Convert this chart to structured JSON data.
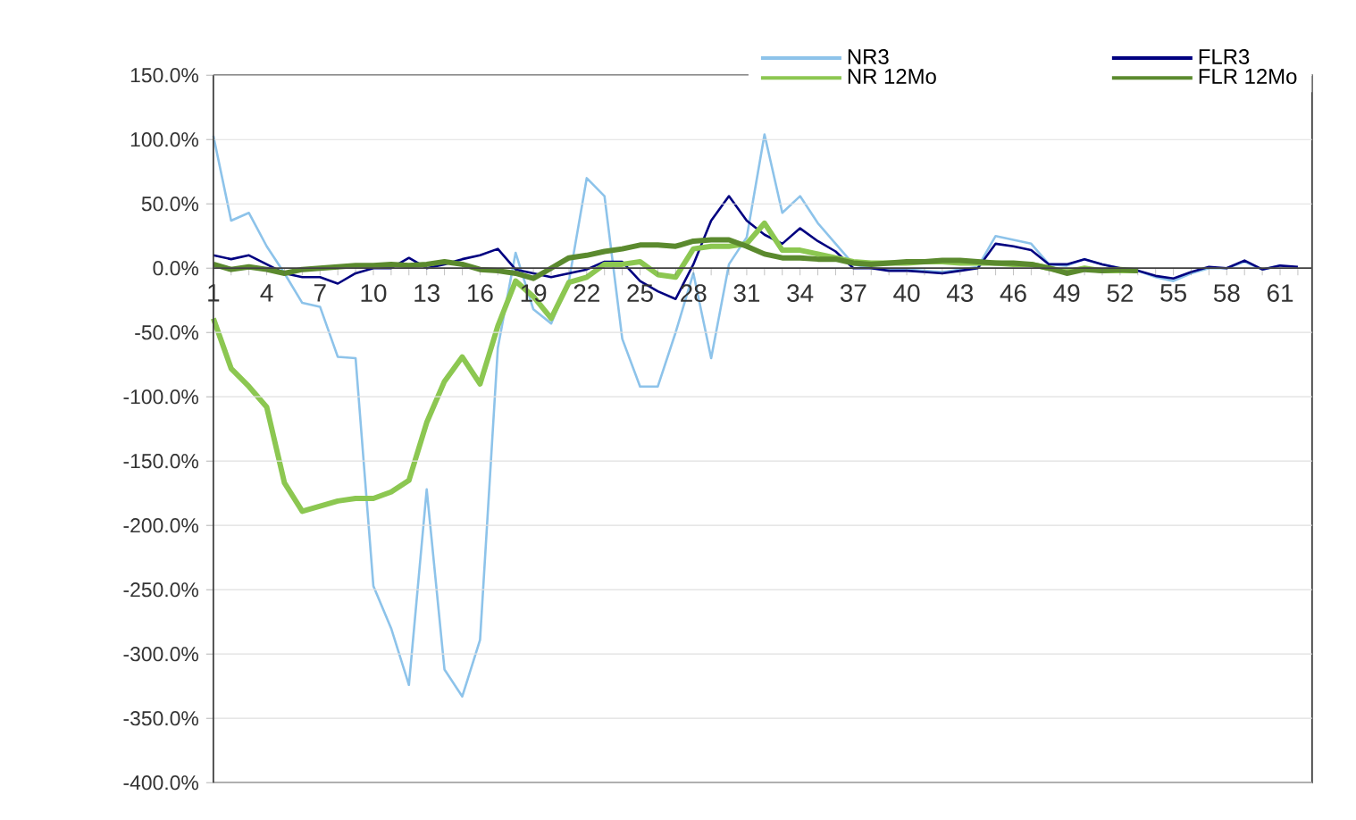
{
  "chart_data": {
    "type": "line",
    "categories": [
      "1",
      null,
      null,
      "4",
      null,
      null,
      "7",
      null,
      null,
      "10",
      null,
      null,
      "13",
      null,
      null,
      "16",
      null,
      null,
      "19",
      null,
      null,
      "22",
      null,
      null,
      "25",
      null,
      null,
      "28",
      null,
      null,
      "31",
      null,
      null,
      "34",
      null,
      null,
      "37",
      null,
      null,
      "40",
      null,
      null,
      "43",
      null,
      null,
      "46",
      null,
      null,
      "49",
      null,
      null,
      "52",
      null,
      null,
      "55",
      null,
      null,
      "58",
      null,
      null,
      "61",
      null
    ],
    "series": [
      {
        "name": "NR3",
        "color": "#8dc3ea",
        "values": [
          103,
          37,
          43,
          17,
          -4,
          -27,
          -30,
          -69,
          -70,
          -247,
          -280,
          -324,
          -172,
          -312,
          -333,
          -289,
          -62,
          12,
          -32,
          -43,
          -10,
          70,
          56,
          -55,
          -92,
          -92,
          -50,
          -4,
          -70,
          3,
          24,
          104,
          43,
          56,
          35,
          19,
          3,
          0,
          -1,
          -1,
          -2,
          -3,
          -1,
          1,
          25,
          22,
          19,
          3,
          2,
          7,
          3,
          0,
          -2,
          -7,
          -10,
          -4,
          0,
          0,
          5,
          -1,
          2,
          null
        ]
      },
      {
        "name": "FLR3",
        "color": "#000080",
        "values": [
          10,
          7,
          10,
          3,
          -4,
          -7,
          -7,
          -12,
          -4,
          0,
          0,
          8,
          0,
          3,
          7,
          10,
          15,
          -1,
          -4,
          -7,
          -4,
          -1,
          5,
          5,
          -10,
          -18,
          -24,
          3,
          37,
          56,
          37,
          26,
          19,
          31,
          21,
          13,
          0,
          0,
          -2,
          -2,
          -3,
          -4,
          -2,
          0,
          19,
          17,
          14,
          3,
          3,
          7,
          3,
          0,
          -2,
          -6,
          -8,
          -3,
          1,
          0,
          6,
          -1,
          2,
          1
        ]
      },
      {
        "name": "NR 12Mo",
        "color": "#8cc751",
        "values": [
          -39,
          -78,
          -92,
          -108,
          -167,
          -189,
          -185,
          -181,
          -179,
          -179,
          -174,
          -165,
          -120,
          -88,
          -69,
          -90,
          -45,
          -10,
          -22,
          -39,
          -11,
          -7,
          3,
          3,
          5,
          -5,
          -7,
          15,
          17,
          17,
          19,
          35,
          14,
          14,
          11,
          8,
          5,
          4,
          4,
          4,
          5,
          5,
          4,
          4,
          4,
          3,
          3,
          0,
          -3,
          0,
          -2,
          -2,
          -2,
          null,
          null,
          null,
          null,
          null,
          null,
          null,
          null,
          null
        ]
      },
      {
        "name": "FLR 12Mo",
        "color": "#5b8a2e",
        "values": [
          3,
          -1,
          1,
          -1,
          -4,
          -1,
          0,
          1,
          2,
          2,
          3,
          2,
          3,
          5,
          3,
          -1,
          -2,
          -4,
          -8,
          0,
          8,
          10,
          13,
          15,
          18,
          18,
          17,
          21,
          22,
          22,
          17,
          11,
          8,
          8,
          7,
          7,
          4,
          3,
          4,
          5,
          5,
          6,
          6,
          5,
          4,
          4,
          3,
          0,
          -4,
          -1,
          -2,
          -1,
          -2,
          null,
          null,
          null,
          null,
          null,
          null,
          null,
          null,
          null
        ]
      }
    ],
    "ylim": [
      -400,
      150
    ],
    "yticks": [
      {
        "value": -400,
        "label": "-400.0%"
      },
      {
        "value": -350,
        "label": "-350.0%"
      },
      {
        "value": -300,
        "label": "-300.0%"
      },
      {
        "value": -250,
        "label": "-250.0%"
      },
      {
        "value": -200,
        "label": "-200.0%"
      },
      {
        "value": -150,
        "label": "-150.0%"
      },
      {
        "value": -100,
        "label": "-100.0%"
      },
      {
        "value": -50,
        "label": "-50.0%"
      },
      {
        "value": 0,
        "label": "0.0%"
      },
      {
        "value": 50,
        "label": "50.0%"
      },
      {
        "value": 100,
        "label": "100.0%"
      },
      {
        "value": 150,
        "label": "150.0%"
      }
    ],
    "grid": "y",
    "legend": "top right",
    "marker": "none",
    "line_style": "solid"
  }
}
